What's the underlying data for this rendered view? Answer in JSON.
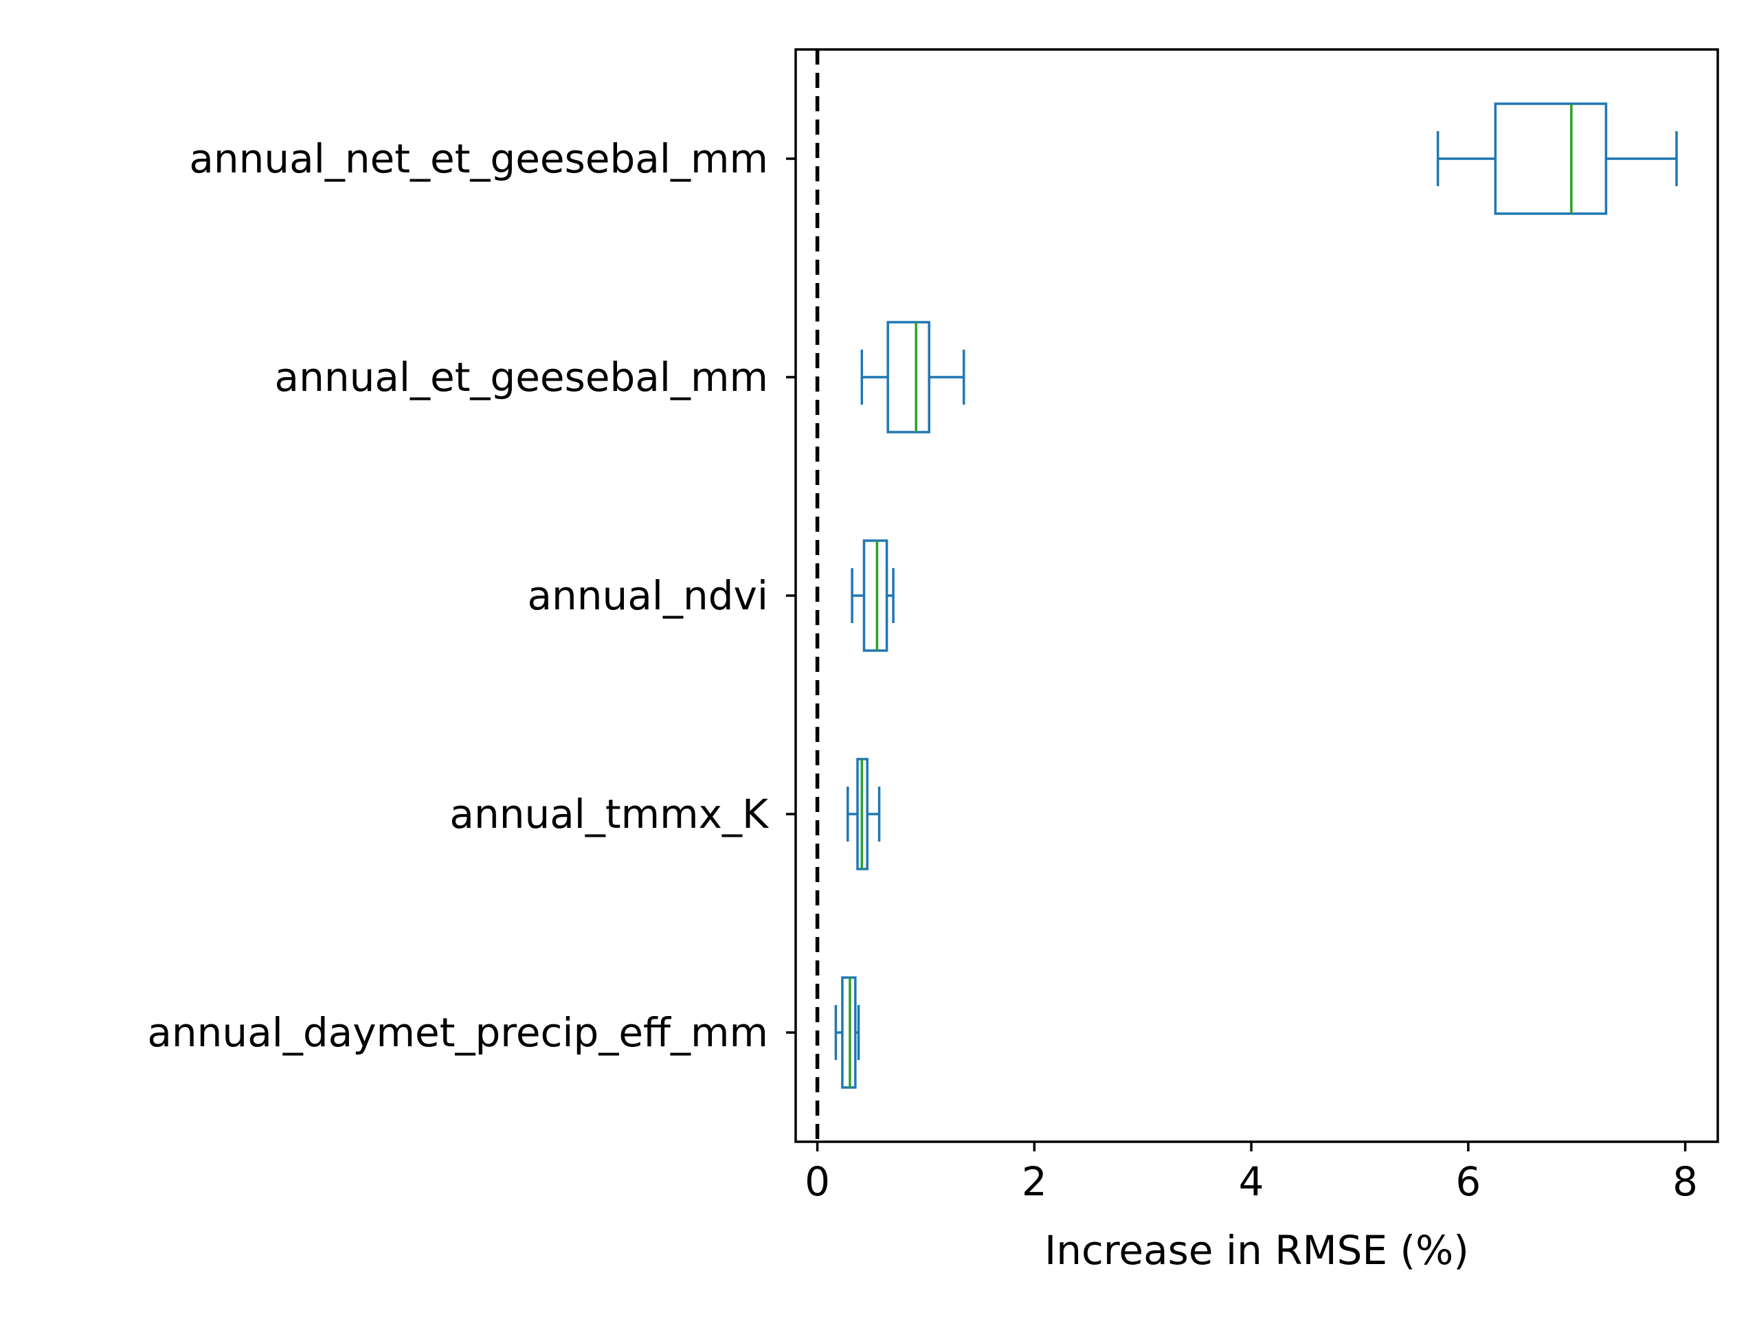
{
  "chart_data": {
    "type": "box",
    "orientation": "horizontal",
    "title": "",
    "xlabel": "Increase in RMSE (%)",
    "ylabel": "",
    "xlim": [
      -0.2,
      8.3
    ],
    "xticks": [
      0,
      2,
      4,
      6,
      8
    ],
    "grid": false,
    "reference_line": {
      "x": 0,
      "style": "dashed",
      "color": "#000000"
    },
    "colors": {
      "box": "#1f77b4",
      "median": "#2ca02c",
      "reference": "#000000"
    },
    "categories": [
      "annual_net_et_geesebal_mm",
      "annual_et_geesebal_mm",
      "annual_ndvi",
      "annual_tmmx_K",
      "annual_daymet_precip_eff_mm"
    ],
    "boxes": [
      {
        "label": "annual_net_et_geesebal_mm",
        "whislo": 5.72,
        "q1": 6.25,
        "med": 6.95,
        "q3": 7.27,
        "whishi": 7.92
      },
      {
        "label": "annual_et_geesebal_mm",
        "whislo": 0.41,
        "q1": 0.65,
        "med": 0.91,
        "q3": 1.03,
        "whishi": 1.35
      },
      {
        "label": "annual_ndvi",
        "whislo": 0.32,
        "q1": 0.43,
        "med": 0.55,
        "q3": 0.64,
        "whishi": 0.7
      },
      {
        "label": "annual_tmmx_K",
        "whislo": 0.28,
        "q1": 0.37,
        "med": 0.41,
        "q3": 0.46,
        "whishi": 0.57
      },
      {
        "label": "annual_daymet_precip_eff_mm",
        "whislo": 0.17,
        "q1": 0.23,
        "med": 0.3,
        "q3": 0.35,
        "whishi": 0.38
      }
    ]
  }
}
